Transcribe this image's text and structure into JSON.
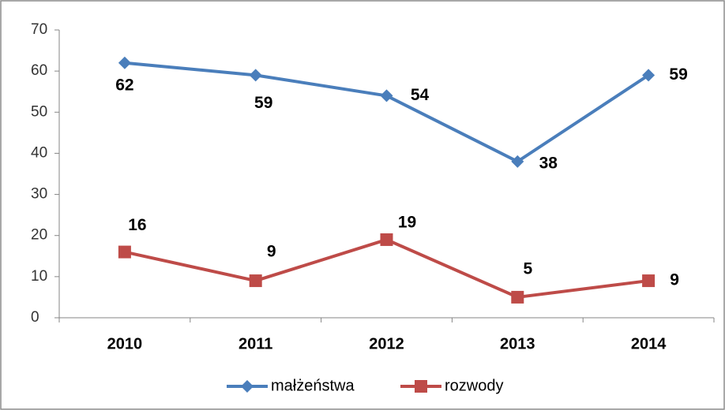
{
  "chart_data": {
    "type": "line",
    "categories": [
      "2010",
      "2011",
      "2012",
      "2013",
      "2014"
    ],
    "series": [
      {
        "name": "małżeństwa",
        "color": "#4a7ebb",
        "values": [
          62,
          59,
          54,
          38,
          59
        ]
      },
      {
        "name": "rozwody",
        "color": "#be4b48",
        "values": [
          16,
          9,
          19,
          5,
          9
        ]
      }
    ],
    "ylim": [
      0,
      70
    ],
    "yticks": [
      0,
      10,
      20,
      30,
      40,
      50,
      60,
      70
    ],
    "grid": false,
    "legend": "bottom"
  }
}
